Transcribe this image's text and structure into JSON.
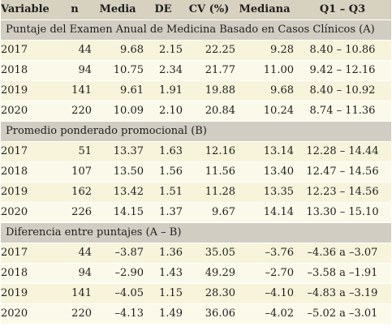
{
  "headers": {
    "variable": "Variable",
    "n": "n",
    "media": "Media",
    "de": "DE",
    "cv": "CV (%)",
    "mediana": "Mediana",
    "q1q3": "Q1 – Q3"
  },
  "sections": [
    {
      "title": "Puntaje del Examen Anual de Medicina Basado en Casos Clínicos (A)",
      "rows": [
        {
          "year": "2017",
          "n": "44",
          "media": "9.68",
          "de": "2.15",
          "cv": "22.25",
          "mediana": "9.28",
          "q1q3": "8.40 – 10.86"
        },
        {
          "year": "2018",
          "n": "94",
          "media": "10.75",
          "de": "2.34",
          "cv": "21.77",
          "mediana": "11.00",
          "q1q3": "9.42 – 12.16"
        },
        {
          "year": "2019",
          "n": "141",
          "media": "9.61",
          "de": "1.91",
          "cv": "19.88",
          "mediana": "9.68",
          "q1q3": "8.40 – 10.92"
        },
        {
          "year": "2020",
          "n": "220",
          "media": "10.09",
          "de": "2.10",
          "cv": "20.84",
          "mediana": "10.24",
          "q1q3": "8.74 – 11.36"
        }
      ]
    },
    {
      "title": "Promedio ponderado promocional (B)",
      "rows": [
        {
          "year": "2017",
          "n": "51",
          "media": "13.37",
          "de": "1.63",
          "cv": "12.16",
          "mediana": "13.14",
          "q1q3": "12.28 – 14.44"
        },
        {
          "year": "2018",
          "n": "107",
          "media": "13.50",
          "de": "1.56",
          "cv": "11.56",
          "mediana": "13.40",
          "q1q3": "12.47 – 14.56"
        },
        {
          "year": "2019",
          "n": "162",
          "media": "13.42",
          "de": "1.51",
          "cv": "11.28",
          "mediana": "13.35",
          "q1q3": "12.23 – 14.56"
        },
        {
          "year": "2020",
          "n": "226",
          "media": "14.15",
          "de": "1.37",
          "cv": "9.67",
          "mediana": "14.14",
          "q1q3": "13.30 – 15.10"
        }
      ]
    },
    {
      "title": "Diferencia entre puntajes (A – B)",
      "rows": [
        {
          "year": "2017",
          "n": "44",
          "media": "–3.87",
          "de": "1.36",
          "cv": "35.05",
          "mediana": "–3.76",
          "q1q3": "–4.36 a –3.07"
        },
        {
          "year": "2018",
          "n": "94",
          "media": "–2.90",
          "de": "1.43",
          "cv": "49.29",
          "mediana": "–2.70",
          "q1q3": "–3.58 a –1.91"
        },
        {
          "year": "2019",
          "n": "141",
          "media": "–4.05",
          "de": "1.15",
          "cv": "28.30",
          "mediana": "–4.10",
          "q1q3": "–4.83 a –3.19"
        },
        {
          "year": "2020",
          "n": "220",
          "media": "–4.13",
          "de": "1.49",
          "cv": "36.06",
          "mediana": "–4.02",
          "q1q3": "–5.02 a –3.01"
        }
      ]
    }
  ]
}
